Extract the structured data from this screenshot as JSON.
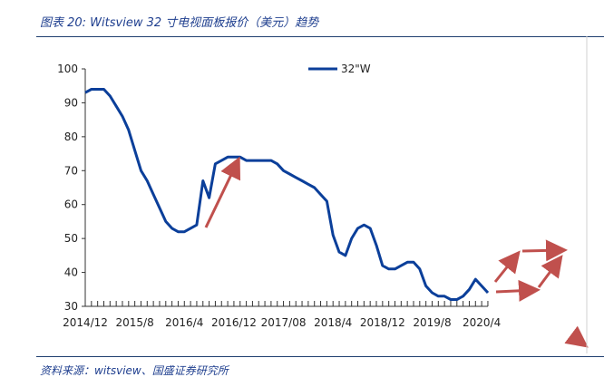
{
  "title": "图表 20:  Witsview 32 寸电视面板报价（美元）趋势",
  "source": "资料来源：witsview、国盛证券研究所",
  "chart_data": {
    "type": "line",
    "ylim": [
      30,
      100
    ],
    "yticks": [
      30,
      40,
      50,
      60,
      70,
      80,
      90,
      100
    ],
    "xtick_labels": [
      "2014/12",
      "2015/8",
      "2016/4",
      "2016/12",
      "2017/08",
      "2018/4",
      "2018/12",
      "2019/8",
      "2020/4"
    ],
    "legend_placement": "top-center",
    "grid": false,
    "series": [
      {
        "name": "32\"W",
        "color": "#0b3f9a",
        "x_start": "2014/12",
        "x_step": "month",
        "values": [
          93,
          94,
          94,
          94,
          92,
          89,
          86,
          82,
          76,
          70,
          67,
          63,
          59,
          55,
          53,
          52,
          52,
          53,
          54,
          67,
          62,
          72,
          73,
          74,
          74,
          74,
          73,
          73,
          73,
          73,
          73,
          72,
          70,
          69,
          68,
          67,
          66,
          65,
          63,
          61,
          51,
          46,
          45,
          50,
          53,
          54,
          53,
          48,
          42,
          41,
          41,
          42,
          43,
          43,
          41,
          36,
          34,
          33,
          33,
          32,
          32,
          33,
          35,
          38,
          36,
          34
        ]
      }
    ],
    "annotation_color": "#c0504d"
  }
}
